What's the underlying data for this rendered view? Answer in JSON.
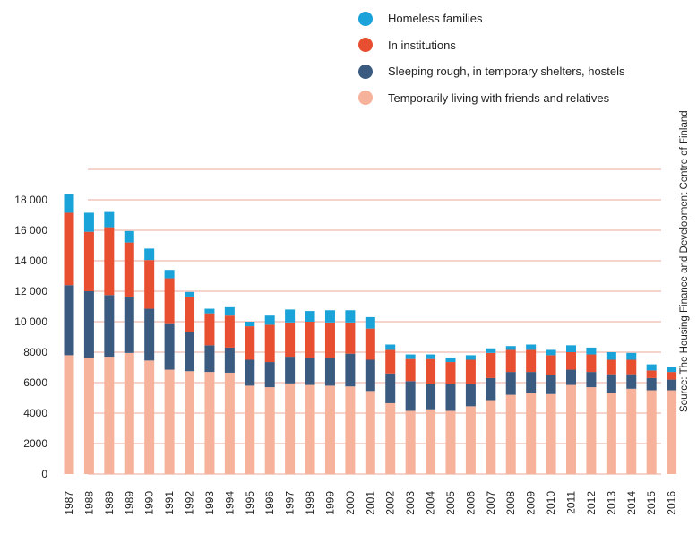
{
  "chart_data": {
    "type": "bar",
    "stacked": true,
    "title": "",
    "xlabel": "",
    "ylabel": "",
    "source": "Source: The Housing Finance and Development Centre of Finland",
    "ylim": [
      0,
      20000
    ],
    "yticks": [
      "0",
      "2000",
      "4000",
      "6000",
      "8000",
      "10 000",
      "12 000",
      "14 000",
      "16 000",
      "18 000"
    ],
    "grid": true,
    "legend_position": "top-right",
    "categories": [
      "1987",
      "1988",
      "1989",
      "1989",
      "1990",
      "1991",
      "1992",
      "1993",
      "1994",
      "1995",
      "1996",
      "1997",
      "1998",
      "1999",
      "2000",
      "2001",
      "2002",
      "2003",
      "2004",
      "2005",
      "2006",
      "2007",
      "2008",
      "2009",
      "2010",
      "2011",
      "2012",
      "2013",
      "2014",
      "2015",
      "2016"
    ],
    "series": [
      {
        "name": "Temporarily living with friends and relatives",
        "color": "#f7b29b",
        "values": [
          7800,
          7600,
          7700,
          7950,
          7450,
          6850,
          6750,
          6700,
          6650,
          5800,
          5700,
          5950,
          5850,
          5800,
          5750,
          5450,
          4650,
          4150,
          4250,
          4150,
          4450,
          4850,
          5200,
          5300,
          5250,
          5850,
          5700,
          5350,
          5600,
          5500,
          5500
        ]
      },
      {
        "name": "Sleeping rough, in temporary shelters, hostels",
        "color": "#3a5a80",
        "values": [
          4600,
          4400,
          4050,
          3700,
          3400,
          3050,
          2550,
          1750,
          1650,
          1700,
          1650,
          1750,
          1750,
          1800,
          2150,
          2050,
          1950,
          1950,
          1650,
          1750,
          1450,
          1450,
          1500,
          1400,
          1250,
          1000,
          1000,
          1200,
          950,
          800,
          700
        ]
      },
      {
        "name": "In institutions",
        "color": "#e84e30",
        "values": [
          4750,
          3900,
          4450,
          3550,
          3200,
          2950,
          2350,
          2100,
          2100,
          2200,
          2450,
          2250,
          2400,
          2350,
          2050,
          2050,
          1550,
          1450,
          1650,
          1450,
          1600,
          1650,
          1450,
          1450,
          1300,
          1150,
          1150,
          950,
          950,
          500,
          500
        ]
      },
      {
        "name": "Homeless families",
        "color": "#1aa3d9",
        "values": [
          1250,
          1250,
          1000,
          750,
          750,
          550,
          300,
          300,
          550,
          300,
          600,
          850,
          700,
          800,
          800,
          750,
          350,
          300,
          300,
          300,
          300,
          300,
          250,
          350,
          350,
          450,
          450,
          500,
          450,
          400,
          350
        ]
      }
    ]
  },
  "legend_order": [
    3,
    2,
    1,
    0
  ]
}
